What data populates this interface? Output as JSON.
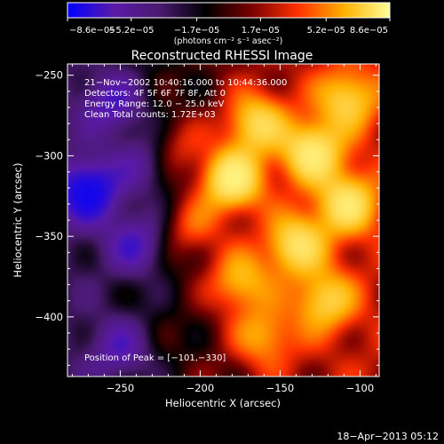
{
  "chart_data": {
    "type": "heatmap",
    "title": "Reconstructed RHESSI Image",
    "xlabel": "Heliocentric X (arcsec)",
    "ylabel": "Heliocentric Y (arcsec)",
    "xlim": [
      -283,
      -88
    ],
    "ylim": [
      -437,
      -243
    ],
    "xticks": [
      -250,
      -200,
      -150,
      -100
    ],
    "yticks": [
      -250,
      -300,
      -350,
      -400
    ],
    "x_tick_labels": [
      "−250",
      "−200",
      "−150",
      "−100"
    ],
    "y_tick_labels": [
      "−250",
      "−300",
      "−350",
      "−400"
    ],
    "colorbar": {
      "range": [
        -8.6e-05,
        8.6e-05
      ],
      "tick_values": [
        -8.6e-05,
        -5.2e-05,
        -1.7e-05,
        1.7e-05,
        5.2e-05,
        8.6e-05
      ],
      "tick_labels": [
        "−8.6e−05",
        "−5.2e−05",
        "−1.7e−05",
        "1.7e−05",
        "5.2e−05",
        "8.6e−05"
      ],
      "units_label": "(photons cm⁻² s⁻¹ asec⁻²)",
      "colors": [
        "#0000ff",
        "#5a1aa8",
        "#4a1a70",
        "#000000",
        "#7a0000",
        "#ff3000",
        "#ffb000",
        "#ffff99"
      ]
    },
    "annotations": [
      "21−Nov−2002 10:40:16.000 to 10:44:36.000",
      "Detectors: 4F 5F 6F 7F 8F, Att 0",
      "Energy Range: 12.0 − 25.0 keV",
      "Clean     Total counts: 1.72E+03"
    ],
    "peak_label": "Position of Peak = [−101,−330]",
    "peak": [
      -101,
      -330
    ],
    "sources": [
      {
        "x": -180,
        "y": -315,
        "amp": 1.0
      },
      {
        "x": -165,
        "y": -280,
        "amp": 0.7
      },
      {
        "x": -130,
        "y": -298,
        "amp": 0.85
      },
      {
        "x": -108,
        "y": -265,
        "amp": 0.6
      },
      {
        "x": -108,
        "y": -330,
        "amp": 0.75
      },
      {
        "x": -140,
        "y": -355,
        "amp": 0.75
      },
      {
        "x": -175,
        "y": -378,
        "amp": 0.55
      },
      {
        "x": -122,
        "y": -390,
        "amp": 0.6
      },
      {
        "x": -160,
        "y": -412,
        "amp": 0.45
      },
      {
        "x": -205,
        "y": -345,
        "amp": 0.35
      },
      {
        "x": -215,
        "y": -295,
        "amp": 0.3
      },
      {
        "x": -270,
        "y": -322,
        "amp": -0.85
      },
      {
        "x": -240,
        "y": -355,
        "amp": -0.5
      },
      {
        "x": -255,
        "y": -268,
        "amp": -0.45
      },
      {
        "x": -250,
        "y": -420,
        "amp": -0.4
      },
      {
        "x": -235,
        "y": -305,
        "amp": -0.35
      }
    ]
  },
  "footer": {
    "timestamp": "18−Apr−2013 05:12"
  }
}
